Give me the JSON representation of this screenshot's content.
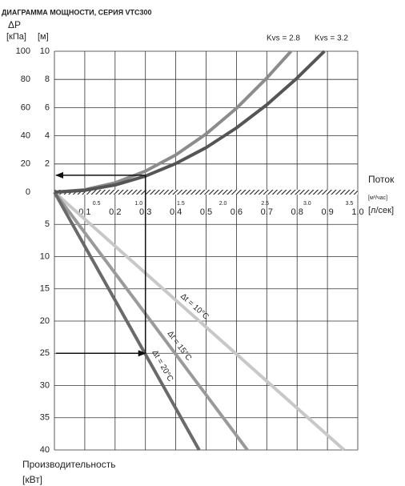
{
  "chart_data": {
    "type": "nomogram",
    "title": "ДИАГРАММА МОЩНОСТИ, СЕРИЯ VTC300",
    "y_title": "ΔP",
    "y_unit": "[кПа]",
    "y2_unit": "[м]",
    "x_title": "Поток",
    "x2_unit": "[м³/час]",
    "x_unit": "[л/сек]",
    "power_title": "Производительность",
    "power_unit": "[кВт]",
    "xlim": [
      0,
      1
    ],
    "xticks": [
      0.1,
      0.2,
      0.3,
      0.4,
      0.5,
      0.6,
      0.7,
      0.8,
      0.9,
      {
        "value": 1,
        "label": "1.0"
      }
    ],
    "x2lim": [
      0,
      3.6
    ],
    "x2ticks": [
      0.5,
      {
        "value": 1,
        "label": "1.0"
      },
      1.5,
      {
        "value": 2,
        "label": "2.0"
      },
      2.5,
      {
        "value": 3,
        "label": "3.0"
      },
      3.5
    ],
    "ylim": [
      0,
      100
    ],
    "yticks": [
      0,
      20,
      40,
      60,
      80,
      100
    ],
    "y2lim": [
      0,
      10
    ],
    "y2ticks": [
      2,
      4,
      6,
      8,
      10
    ],
    "power_lim": [
      0,
      40
    ],
    "power_ticks": [
      5,
      10,
      15,
      20,
      25,
      30,
      35,
      40
    ],
    "grid": true,
    "series": [
      {
        "name": "Kvs = 2.8",
        "color": "#8c8c8c",
        "x": [
          0,
          0.1,
          0.2,
          0.3,
          0.4,
          0.5,
          0.6,
          0.7,
          0.78
        ],
        "values": [
          0,
          1.7,
          6.6,
          14.9,
          26.4,
          41.3,
          59.5,
          81,
          100
        ]
      },
      {
        "name": "Kvs = 3.2",
        "color": "#555555",
        "x": [
          0,
          0.1,
          0.2,
          0.3,
          0.4,
          0.5,
          0.6,
          0.7,
          0.8,
          0.89
        ],
        "values": [
          0,
          1.3,
          5.1,
          11.4,
          20.3,
          31.6,
          45.6,
          62,
          81,
          100
        ]
      }
    ],
    "power_series": [
      {
        "name": "Δt = 10°C",
        "color": "#c8c8c8",
        "x": [
          0,
          0.955
        ],
        "values": [
          0,
          40
        ]
      },
      {
        "name": "Δt = 15°C",
        "color": "#9a9a9a",
        "x": [
          0,
          0.636
        ],
        "values": [
          0,
          40
        ]
      },
      {
        "name": "Δt = 20°C",
        "color": "#6a6a6a",
        "x": [
          0,
          0.477
        ],
        "values": [
          0,
          40
        ]
      }
    ],
    "example": {
      "flow": 0.3,
      "pressure": 12,
      "power": 25
    }
  }
}
